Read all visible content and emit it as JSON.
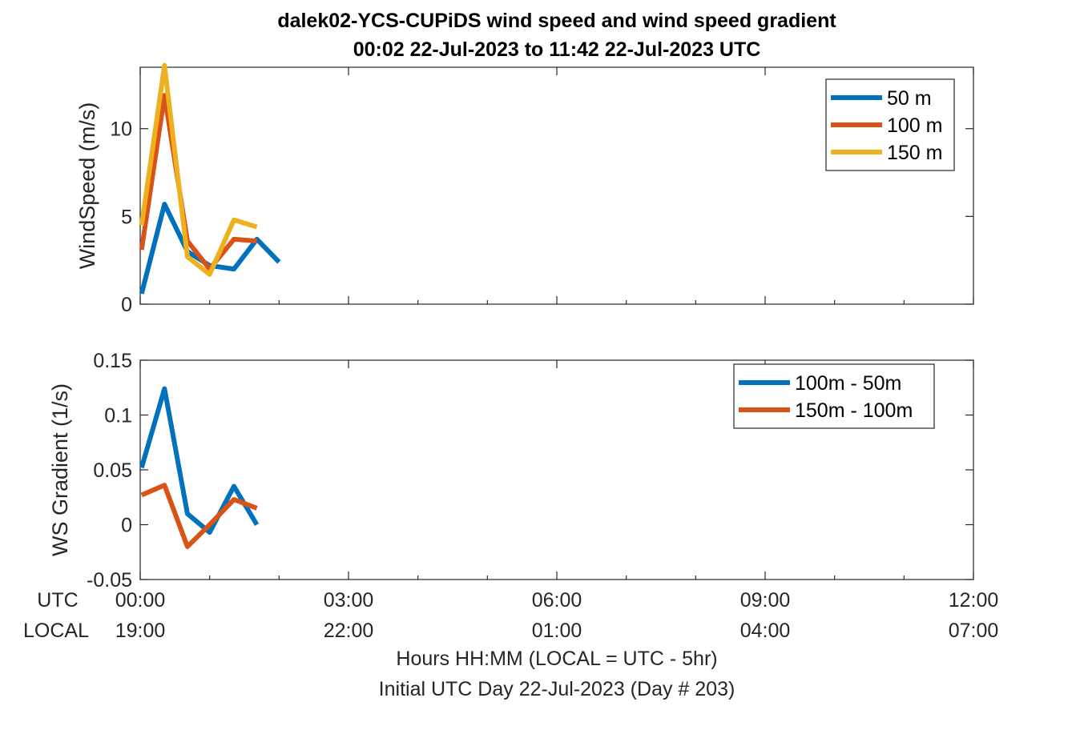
{
  "title_line1": "dalek02-YCS-CUPiDS  wind speed and wind speed gradient",
  "title_line2": "00:02 22-Jul-2023 to 11:42 22-Jul-2023  UTC",
  "xaxis": {
    "utc_row_label": "UTC",
    "local_row_label": "LOCAL",
    "utc_ticks": [
      "00:00",
      "03:00",
      "06:00",
      "09:00",
      "12:00"
    ],
    "local_ticks": [
      "19:00",
      "22:00",
      "01:00",
      "04:00",
      "07:00"
    ],
    "label_line1": "Hours HH:MM  (LOCAL = UTC - 5hr)",
    "label_line2": "Initial UTC Day 22-Jul-2023 (Day # 203)"
  },
  "colors": {
    "blue": "#0072BD",
    "orange": "#D95319",
    "yellow": "#EDB120"
  },
  "chart_data": [
    {
      "type": "line",
      "title": "",
      "xlabel": "",
      "ylabel": "WindSpeed (m/s)",
      "xlim": [
        0,
        12
      ],
      "ylim": [
        0,
        13.5
      ],
      "y_ticks": [
        "0",
        "5",
        "10"
      ],
      "y_tick_values": [
        0,
        5,
        10
      ],
      "grid": false,
      "legend_position": "top-right",
      "series": [
        {
          "name": "50 m",
          "color": "#0072BD",
          "x": [
            0.02,
            0.35,
            0.68,
            1.0,
            1.35,
            1.68,
            2.0
          ],
          "y": [
            0.6,
            5.7,
            3.0,
            2.2,
            2.0,
            3.7,
            2.4
          ]
        },
        {
          "name": "100 m",
          "color": "#D95319",
          "x": [
            0.02,
            0.35,
            0.68,
            1.0,
            1.35,
            1.68
          ],
          "y": [
            3.1,
            11.9,
            3.6,
            2.0,
            3.7,
            3.6
          ]
        },
        {
          "name": "150 m",
          "color": "#EDB120",
          "x": [
            0.02,
            0.35,
            0.68,
            1.0,
            1.35,
            1.68
          ],
          "y": [
            4.5,
            13.6,
            2.7,
            1.7,
            4.8,
            4.4
          ]
        }
      ]
    },
    {
      "type": "line",
      "title": "",
      "xlabel": "",
      "ylabel": "WS Gradient (1/s)",
      "xlim": [
        0,
        12
      ],
      "ylim": [
        -0.05,
        0.15
      ],
      "y_ticks": [
        "-0.05",
        "0",
        "0.05",
        "0.1",
        "0.15"
      ],
      "y_tick_values": [
        -0.05,
        0,
        0.05,
        0.1,
        0.15
      ],
      "grid": false,
      "legend_position": "top-right",
      "series": [
        {
          "name": "100m - 50m",
          "color": "#0072BD",
          "x": [
            0.02,
            0.35,
            0.68,
            1.0,
            1.35,
            1.68
          ],
          "y": [
            0.052,
            0.124,
            0.01,
            -0.007,
            0.035,
            0.0
          ]
        },
        {
          "name": "150m - 100m",
          "color": "#D95319",
          "x": [
            0.02,
            0.35,
            0.68,
            1.0,
            1.35,
            1.68
          ],
          "y": [
            0.027,
            0.036,
            -0.02,
            0.0,
            0.023,
            0.015
          ]
        }
      ]
    }
  ]
}
